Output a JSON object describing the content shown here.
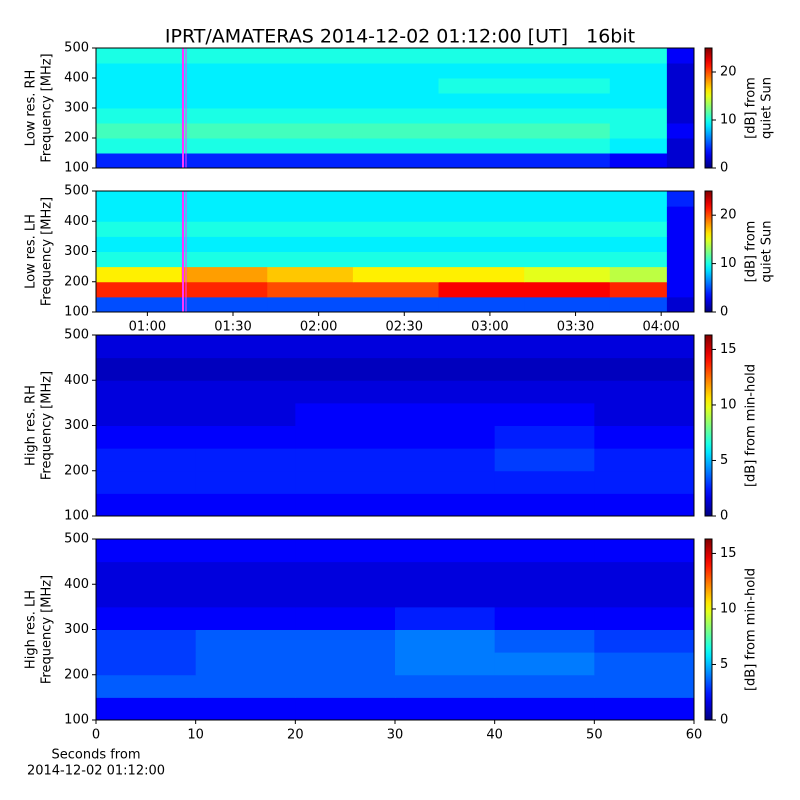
{
  "title": "IPRT/AMATERAS 2014-12-02 01:12:00 [UT]   16bit",
  "chart_data": [
    {
      "type": "heatmap",
      "ylabel": [
        "Low res. RH",
        "Frequency [MHz]"
      ],
      "colorbar_label": [
        "[dB] from",
        "quiet Sun"
      ],
      "ylim": [
        100,
        500
      ],
      "yticks": [
        100,
        200,
        300,
        400,
        500
      ],
      "xlim": [
        42,
        251.5
      ],
      "xbins": [
        42,
        72,
        102,
        132,
        162,
        192,
        222,
        242,
        251.5
      ],
      "ybins": [
        100,
        150,
        200,
        250,
        300,
        350,
        400,
        450,
        500
      ],
      "vlim": [
        0,
        25
      ],
      "cticks": [
        0,
        10,
        20
      ],
      "colormap": "jet",
      "z": [
        [
          4,
          4,
          4,
          4,
          4,
          4,
          3,
          2
        ],
        [
          10,
          10,
          10,
          10,
          10,
          10,
          9,
          2
        ],
        [
          11,
          11,
          11,
          11,
          11,
          11,
          10,
          3
        ],
        [
          10,
          10,
          10,
          10,
          10,
          10,
          10,
          2
        ],
        [
          9,
          9,
          9,
          9,
          9,
          9,
          9,
          2
        ],
        [
          9,
          9,
          9,
          9,
          10,
          10,
          9,
          2
        ],
        [
          9,
          9,
          9,
          9,
          9,
          9,
          9,
          2
        ],
        [
          10,
          10,
          10,
          10,
          10,
          10,
          10,
          3
        ]
      ]
    },
    {
      "type": "heatmap",
      "ylabel": [
        "Low res. LH",
        "Frequency [MHz]"
      ],
      "colorbar_label": [
        "[dB] from",
        "quiet Sun"
      ],
      "ylim": [
        100,
        500
      ],
      "yticks": [
        100,
        200,
        300,
        400,
        500
      ],
      "xlim": [
        42,
        251.5
      ],
      "xticks": [
        {
          "value": 60,
          "label": "01:00"
        },
        {
          "value": 90,
          "label": "01:30"
        },
        {
          "value": 120,
          "label": "02:00"
        },
        {
          "value": 150,
          "label": "02:30"
        },
        {
          "value": 180,
          "label": "03:00"
        },
        {
          "value": 210,
          "label": "03:30"
        },
        {
          "value": 240,
          "label": "04:00"
        }
      ],
      "xbins": [
        42,
        72,
        102,
        132,
        162,
        192,
        222,
        242,
        251.5
      ],
      "ybins": [
        100,
        150,
        200,
        250,
        300,
        350,
        400,
        450,
        500
      ],
      "vlim": [
        0,
        25
      ],
      "cticks": [
        0,
        10,
        20
      ],
      "colormap": "jet",
      "z": [
        [
          5,
          5,
          5,
          5,
          5,
          5,
          5,
          2
        ],
        [
          21,
          21,
          20,
          20,
          22,
          22,
          21,
          3
        ],
        [
          16,
          18,
          17,
          16,
          16,
          15,
          14,
          3
        ],
        [
          10,
          10,
          10,
          10,
          10,
          10,
          10,
          3
        ],
        [
          9,
          9,
          9,
          9,
          9,
          9,
          9,
          3
        ],
        [
          10,
          10,
          10,
          10,
          10,
          10,
          10,
          3
        ],
        [
          9,
          9,
          9,
          9,
          9,
          9,
          9,
          3
        ],
        [
          9,
          9,
          9,
          9,
          9,
          9,
          9,
          4
        ]
      ]
    },
    {
      "type": "heatmap",
      "ylabel": [
        "High res. RH",
        "Frequency [MHz]"
      ],
      "colorbar_label": [
        "[dB] from min-hold"
      ],
      "ylim": [
        100,
        500
      ],
      "yticks": [
        100,
        200,
        300,
        400,
        500
      ],
      "xlim": [
        0,
        60
      ],
      "xbins": [
        0,
        10,
        20,
        30,
        40,
        50,
        60
      ],
      "ybins": [
        100,
        150,
        200,
        250,
        300,
        350,
        400,
        450,
        500
      ],
      "vlim": [
        0,
        16.3
      ],
      "cticks": [
        0,
        5,
        10,
        15
      ],
      "colormap": "jet",
      "z": [
        [
          2,
          2,
          2,
          2,
          2,
          2
        ],
        [
          2.5,
          2.5,
          2.5,
          2.5,
          2.5,
          2.5
        ],
        [
          2.5,
          2.5,
          2.5,
          2.5,
          3,
          2.5
        ],
        [
          2,
          2,
          2,
          2,
          2.5,
          2
        ],
        [
          1.5,
          1.5,
          2,
          2,
          2,
          1.5
        ],
        [
          1.5,
          1.5,
          1.5,
          1.5,
          1.5,
          1.5
        ],
        [
          1,
          1,
          1,
          1,
          1,
          1
        ],
        [
          1.5,
          1.5,
          1.5,
          1.5,
          1.5,
          1.5
        ]
      ]
    },
    {
      "type": "heatmap",
      "ylabel": [
        "High res. LH",
        "Frequency [MHz]"
      ],
      "colorbar_label": [
        "[dB] from min-hold"
      ],
      "xlabel": [
        "Seconds from",
        "2014-12-02 01:12:00"
      ],
      "ylim": [
        100,
        500
      ],
      "yticks": [
        100,
        200,
        300,
        400,
        500
      ],
      "xlim": [
        0,
        60
      ],
      "xticks": [
        0,
        10,
        20,
        30,
        40,
        50,
        60
      ],
      "xbins": [
        0,
        10,
        20,
        30,
        40,
        50,
        60
      ],
      "ybins": [
        100,
        150,
        200,
        250,
        300,
        350,
        400,
        450,
        500
      ],
      "vlim": [
        0,
        16.3
      ],
      "cticks": [
        0,
        5,
        10,
        15
      ],
      "colormap": "jet",
      "z": [
        [
          2,
          2,
          2,
          2,
          2,
          2
        ],
        [
          3.5,
          3.5,
          3.5,
          3.5,
          3.5,
          3.5
        ],
        [
          3,
          3.5,
          3.5,
          4,
          4,
          3.5
        ],
        [
          3,
          3.5,
          3.5,
          4,
          3.5,
          3
        ],
        [
          2,
          2,
          2,
          2.5,
          2,
          2
        ],
        [
          1.5,
          1.5,
          1.5,
          1.5,
          1.5,
          1.5
        ],
        [
          1.5,
          1.5,
          1.5,
          1.5,
          1.5,
          1.5
        ],
        [
          2,
          2,
          2,
          2,
          2,
          2
        ]
      ]
    }
  ]
}
